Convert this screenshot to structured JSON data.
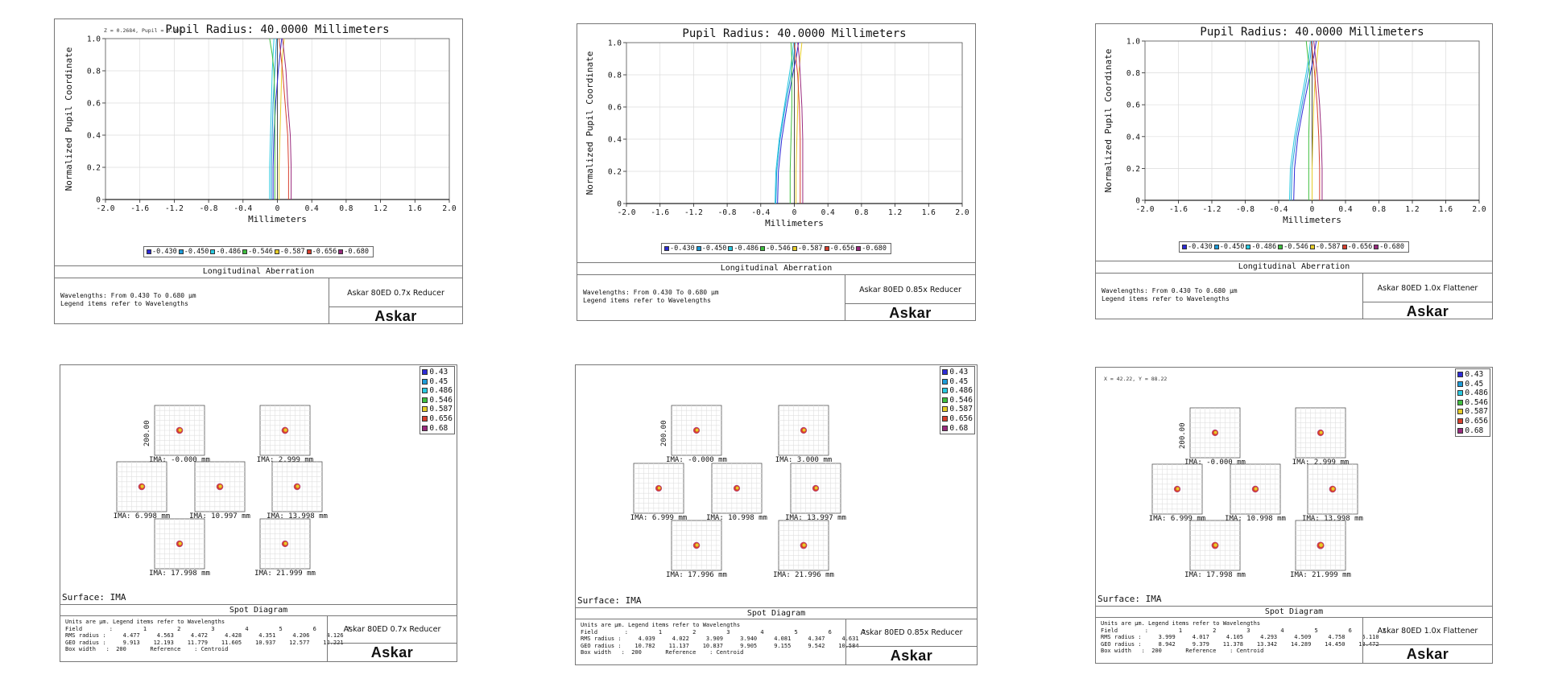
{
  "colors": {
    "wavelength_colors": [
      "#2d2bd6",
      "#1d9bd8",
      "#29c9e0",
      "#3fbf3f",
      "#e6cc28",
      "#d8402e",
      "#9a2a7e"
    ],
    "frame": "#777777",
    "grid": "#d8d8d8"
  },
  "common": {
    "legend_top": [
      "0.43",
      "0.45",
      "0.486",
      "0.546",
      "0.587",
      "0.656",
      "0.68"
    ],
    "legend_bottom_la": [
      "0.430",
      "0.450",
      "0.486",
      "0.546",
      "0.587",
      "0.656",
      "0.680"
    ],
    "logo_text": "Askar",
    "la_footer_title": "Longitudinal Aberration",
    "la_footer_text": "Wavelengths: From 0.430 To 0.680 µm\nLegend items refer to Wavelengths",
    "spot_footer_title": "Spot Diagram",
    "surface_label": "Surface: IMA",
    "scale_label": "200.00"
  },
  "la_panels": [
    {
      "name": "Askar 80ED 0.7x Reducer",
      "cursor_readout": "Z = 0.2684, Pupil = 0.9951",
      "chart_data": {
        "type": "line",
        "title": "Pupil Radius: 40.0000 Millimeters",
        "xlabel": "Millimeters",
        "ylabel": "Normalized Pupil Coordinate",
        "xlim": [
          -2.0,
          2.0
        ],
        "ylim": [
          0,
          1.0
        ],
        "xticks": [
          "-2.0",
          "-1.6",
          "-1.2",
          "-0.8",
          "-0.4",
          "0",
          "0.4",
          "0.8",
          "1.2",
          "1.6",
          "2.0"
        ],
        "yticks": [
          "0",
          "0.2",
          "0.4",
          "0.6",
          "0.8",
          "1.0"
        ],
        "y": [
          0,
          0.2,
          0.4,
          0.6,
          0.8,
          0.9,
          1.0
        ],
        "series": [
          {
            "name": "0.430",
            "x": [
              -0.05,
              -0.05,
              -0.04,
              -0.02,
              0.01,
              0.03,
              0.05
            ]
          },
          {
            "name": "0.450",
            "x": [
              -0.07,
              -0.07,
              -0.06,
              -0.05,
              -0.03,
              -0.02,
              -0.01
            ]
          },
          {
            "name": "0.486",
            "x": [
              -0.09,
              -0.09,
              -0.08,
              -0.07,
              -0.06,
              -0.05,
              -0.04
            ]
          },
          {
            "name": "0.546",
            "x": [
              -0.03,
              -0.03,
              -0.03,
              -0.03,
              -0.04,
              -0.06,
              -0.09
            ]
          },
          {
            "name": "0.587",
            "x": [
              0.02,
              0.02,
              0.03,
              0.04,
              0.05,
              0.06,
              0.08
            ]
          },
          {
            "name": "0.656",
            "x": [
              0.13,
              0.13,
              0.12,
              0.09,
              0.06,
              0.04,
              0.02
            ]
          },
          {
            "name": "0.680",
            "x": [
              0.16,
              0.16,
              0.15,
              0.12,
              0.1,
              0.08,
              0.06
            ]
          }
        ]
      }
    },
    {
      "name": "Askar 80ED 0.85x Reducer",
      "cursor_readout": "",
      "chart_data": {
        "type": "line",
        "title": "Pupil Radius: 40.0000 Millimeters",
        "xlabel": "Millimeters",
        "ylabel": "Normalized Pupil Coordinate",
        "xlim": [
          -2.0,
          2.0
        ],
        "ylim": [
          0,
          1.0
        ],
        "xticks": [
          "-2.0",
          "-1.6",
          "-1.2",
          "-0.8",
          "-0.4",
          "0",
          "0.4",
          "0.8",
          "1.2",
          "1.6",
          "2.0"
        ],
        "yticks": [
          "0",
          "0.2",
          "0.4",
          "0.6",
          "0.8",
          "1.0"
        ],
        "y": [
          0,
          0.2,
          0.4,
          0.6,
          0.8,
          0.9,
          1.0
        ],
        "series": [
          {
            "name": "0.430",
            "x": [
              -0.2,
              -0.19,
              -0.15,
              -0.09,
              -0.02,
              0.02,
              0.05
            ]
          },
          {
            "name": "0.450",
            "x": [
              -0.22,
              -0.21,
              -0.17,
              -0.11,
              -0.04,
              -0.01,
              0.01
            ]
          },
          {
            "name": "0.486",
            "x": [
              -0.23,
              -0.22,
              -0.18,
              -0.12,
              -0.06,
              -0.03,
              -0.01
            ]
          },
          {
            "name": "0.546",
            "x": [
              -0.05,
              -0.05,
              -0.04,
              -0.03,
              -0.03,
              -0.03,
              -0.04
            ]
          },
          {
            "name": "0.587",
            "x": [
              0.02,
              0.02,
              0.03,
              0.04,
              0.05,
              0.07,
              0.09
            ]
          },
          {
            "name": "0.656",
            "x": [
              0.07,
              0.07,
              0.07,
              0.06,
              0.04,
              0.02,
              0.0
            ]
          },
          {
            "name": "0.680",
            "x": [
              0.1,
              0.1,
              0.1,
              0.09,
              0.07,
              0.06,
              0.04
            ]
          }
        ]
      }
    },
    {
      "name": "Askar 80ED 1.0x Flattener",
      "cursor_readout": "",
      "chart_data": {
        "type": "line",
        "title": "Pupil Radius: 40.0000 Millimeters",
        "xlabel": "Millimeters",
        "ylabel": "Normalized Pupil Coordinate",
        "xlim": [
          -2.0,
          2.0
        ],
        "ylim": [
          0,
          1.0
        ],
        "xticks": [
          "-2.0",
          "-1.6",
          "-1.2",
          "-0.8",
          "-0.4",
          "0",
          "0.4",
          "0.8",
          "1.2",
          "1.6",
          "2.0"
        ],
        "yticks": [
          "0",
          "0.2",
          "0.4",
          "0.6",
          "0.8",
          "1.0"
        ],
        "y": [
          0,
          0.2,
          0.4,
          0.6,
          0.8,
          0.9,
          1.0
        ],
        "series": [
          {
            "name": "0.430",
            "x": [
              -0.22,
              -0.21,
              -0.17,
              -0.1,
              -0.02,
              0.02,
              0.05
            ]
          },
          {
            "name": "0.450",
            "x": [
              -0.25,
              -0.24,
              -0.19,
              -0.12,
              -0.05,
              -0.02,
              0.0
            ]
          },
          {
            "name": "0.486",
            "x": [
              -0.27,
              -0.26,
              -0.21,
              -0.14,
              -0.07,
              -0.04,
              -0.02
            ]
          },
          {
            "name": "0.546",
            "x": [
              -0.04,
              -0.04,
              -0.04,
              -0.03,
              -0.03,
              -0.05,
              -0.07
            ]
          },
          {
            "name": "0.587",
            "x": [
              0.0,
              0.0,
              0.01,
              0.02,
              0.04,
              0.06,
              0.08
            ]
          },
          {
            "name": "0.656",
            "x": [
              0.09,
              0.09,
              0.08,
              0.06,
              0.03,
              0.01,
              -0.01
            ]
          },
          {
            "name": "0.680",
            "x": [
              0.12,
              0.12,
              0.11,
              0.09,
              0.06,
              0.04,
              0.02
            ]
          }
        ]
      }
    }
  ],
  "spot_panels": [
    {
      "name": "Askar 80ED 0.7x Reducer",
      "cursor_readout": "",
      "fields": [
        "IMA: -0.000 mm",
        "IMA: 2.999 mm",
        "IMA: 6.998 mm",
        "IMA: 10.997 mm",
        "IMA: 13.998 mm",
        "IMA: 17.998 mm",
        "IMA: 21.999 mm"
      ],
      "footer_text": "Units are µm. Legend items refer to Wavelengths\nField        :         1         2         3         4         5         6         7\nRMS radius :     4.477     4.563     4.472     4.428     4.351     4.206     4.126\nGEO radius :     9.913    12.193    11.779    11.605    10.937    12.577    12.221\nBox width   :  200       Reference    : Centroid",
      "chart_data": {
        "type": "scatter",
        "title": "Spot Diagram",
        "field_labels": [
          "1",
          "2",
          "3",
          "4",
          "5",
          "6",
          "7"
        ],
        "rms_radius_um": [
          4.477,
          4.563,
          4.472,
          4.428,
          4.351,
          4.206,
          4.126
        ],
        "geo_radius_um": [
          9.913,
          12.193,
          11.779,
          11.605,
          10.937,
          12.577,
          12.221
        ],
        "box_width_um": 200,
        "reference": "Centroid"
      }
    },
    {
      "name": "Askar 80ED 0.85x Reducer",
      "cursor_readout": "",
      "fields": [
        "IMA: -0.000 mm",
        "IMA: 3.000 mm",
        "IMA: 6.999 mm",
        "IMA: 10.998 mm",
        "IMA: 13.997 mm",
        "IMA: 17.996 mm",
        "IMA: 21.996 mm"
      ],
      "footer_text": "Units are µm. Legend items refer to Wavelengths\nField        :         1         2         3         4         5         6         7\nRMS radius :     4.039     4.022     3.909     3.940     4.081     4.347     4.631\nGEO radius :    10.782    11.137    10.837     9.905     9.155     9.542    10.584\nBox width   :  200       Reference    : Centroid",
      "chart_data": {
        "type": "scatter",
        "title": "Spot Diagram",
        "field_labels": [
          "1",
          "2",
          "3",
          "4",
          "5",
          "6",
          "7"
        ],
        "rms_radius_um": [
          4.039,
          4.022,
          3.909,
          3.94,
          4.081,
          4.347,
          4.631
        ],
        "geo_radius_um": [
          10.782,
          11.137,
          10.837,
          9.905,
          9.155,
          9.542,
          10.584
        ],
        "box_width_um": 200,
        "reference": "Centroid"
      }
    },
    {
      "name": "Askar 80ED 1.0x Flattener",
      "cursor_readout": "X = 42.22, Y = 88.22",
      "fields": [
        "IMA: -0.000 mm",
        "IMA: 2.999 mm",
        "IMA: 6.999 mm",
        "IMA: 10.998 mm",
        "IMA: 13.998 mm",
        "IMA: 17.998 mm",
        "IMA: 21.999 mm"
      ],
      "footer_text": "Units are µm. Legend items refer to Wavelengths\nField        :         1         2         3         4         5         6         7\nRMS radius :     3.999     4.017     4.105     4.293     4.509     4.758     5.110\nGEO radius :     8.942     9.379    11.378    13.342    14.289    14.450    13.472\nBox width   :  200       Reference    : Centroid",
      "chart_data": {
        "type": "scatter",
        "title": "Spot Diagram",
        "field_labels": [
          "1",
          "2",
          "3",
          "4",
          "5",
          "6",
          "7"
        ],
        "rms_radius_um": [
          3.999,
          4.017,
          4.105,
          4.293,
          4.509,
          4.758,
          5.11
        ],
        "geo_radius_um": [
          8.942,
          9.379,
          11.378,
          13.342,
          14.289,
          14.45,
          13.472
        ],
        "box_width_um": 200,
        "reference": "Centroid"
      }
    }
  ]
}
